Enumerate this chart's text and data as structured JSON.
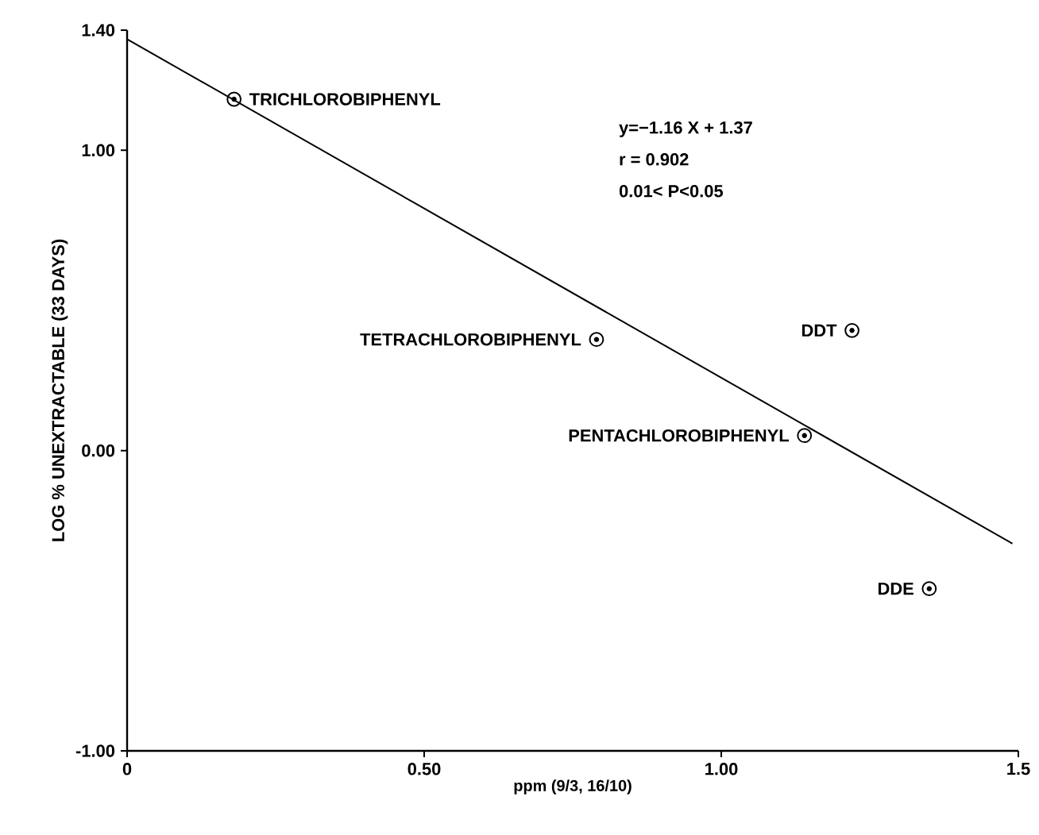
{
  "chart_data": {
    "type": "scatter",
    "xlabel": "ppm (9/3, 16/10)",
    "ylabel": "LOG % UNEXTRACTABLE (33 DAYS)",
    "xlim": [
      0,
      1.5
    ],
    "ylim": [
      -1.0,
      1.4
    ],
    "xticks": [
      0,
      {
        "value": 0.5,
        "label": "0.50"
      },
      {
        "value": 1.0,
        "label": "1.00"
      },
      1.5
    ],
    "yticks": [
      {
        "value": -1.0,
        "label": "-1.00"
      },
      {
        "value": 0.0,
        "label": "0.00"
      },
      {
        "value": 1.0,
        "label": "1.00"
      },
      {
        "value": 1.4,
        "label": "1.40"
      }
    ],
    "series": [
      {
        "marker": "circle",
        "color": "#000000",
        "x": [
          0.18,
          0.79,
          1.14,
          1.22,
          1.35
        ],
        "values": [
          1.17,
          0.37,
          0.05,
          0.4,
          -0.46
        ]
      },
      {
        "type": "line",
        "marker": "none",
        "color": "#000000",
        "line_style": "solid",
        "x": [
          0,
          1.49
        ],
        "values": [
          1.37,
          -0.31
        ]
      }
    ],
    "annotations": [
      {
        "text": "TRICHLOROBIPHENYL",
        "x": 0.18,
        "y": 1.17
      },
      {
        "text": "TETRACHLOROBIPHENYL",
        "x": 0.79,
        "y": 0.37
      },
      {
        "text": "PENTACHLOROBIPHENYL",
        "x": 1.14,
        "y": 0.05
      },
      {
        "text": "DDT",
        "x": 1.22,
        "y": 0.4
      },
      {
        "text": "DDE",
        "x": 1.35,
        "y": -0.46
      },
      "y=−1.16 X + 1.37",
      "r = 0.902",
      "0.01< P<0.05"
    ]
  }
}
